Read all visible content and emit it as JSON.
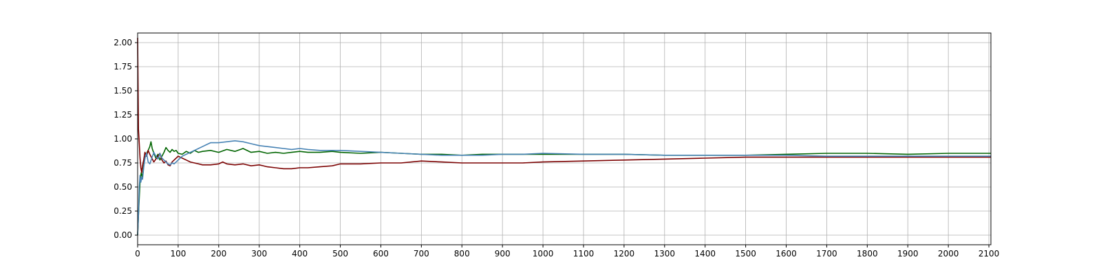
{
  "chart_data": {
    "type": "line",
    "title": "",
    "xlabel": "",
    "ylabel": "",
    "xlim": [
      0,
      2105
    ],
    "ylim": [
      -0.1,
      2.1
    ],
    "grid": true,
    "legend": "none",
    "xticks": [
      "0",
      "100",
      "200",
      "300",
      "400",
      "500",
      "600",
      "700",
      "800",
      "900",
      "1000",
      "1100",
      "1200",
      "1300",
      "1400",
      "1500",
      "1600",
      "1700",
      "1800",
      "1900",
      "2000",
      "2100"
    ],
    "yticks": [
      "0.00",
      "0.25",
      "0.50",
      "0.75",
      "1.00",
      "1.25",
      "1.50",
      "1.75",
      "2.00"
    ],
    "series": [
      {
        "color": "#006400",
        "x": [
          0,
          3,
          6,
          9,
          12,
          15,
          18,
          22,
          26,
          30,
          33,
          36,
          40,
          45,
          50,
          55,
          60,
          65,
          70,
          75,
          80,
          85,
          90,
          95,
          100,
          110,
          120,
          130,
          140,
          150,
          160,
          180,
          200,
          220,
          240,
          260,
          280,
          300,
          320,
          340,
          360,
          380,
          400,
          420,
          450,
          480,
          500,
          550,
          600,
          650,
          700,
          750,
          800,
          850,
          900,
          950,
          1000,
          1100,
          1200,
          1300,
          1400,
          1500,
          1600,
          1700,
          1800,
          1900,
          2000,
          2105
        ],
        "y": [
          0.0,
          0.3,
          0.55,
          0.65,
          0.6,
          0.72,
          0.8,
          0.85,
          0.88,
          0.92,
          0.97,
          0.9,
          0.85,
          0.8,
          0.84,
          0.78,
          0.82,
          0.86,
          0.91,
          0.88,
          0.86,
          0.89,
          0.87,
          0.88,
          0.85,
          0.84,
          0.87,
          0.85,
          0.88,
          0.86,
          0.87,
          0.88,
          0.86,
          0.89,
          0.87,
          0.9,
          0.86,
          0.87,
          0.85,
          0.86,
          0.85,
          0.86,
          0.87,
          0.86,
          0.86,
          0.87,
          0.86,
          0.85,
          0.86,
          0.85,
          0.84,
          0.84,
          0.83,
          0.84,
          0.84,
          0.84,
          0.84,
          0.84,
          0.84,
          0.83,
          0.83,
          0.83,
          0.84,
          0.85,
          0.85,
          0.84,
          0.85,
          0.85
        ]
      },
      {
        "color": "#7b0000",
        "x": [
          0,
          2,
          4,
          6,
          8,
          10,
          12,
          15,
          18,
          22,
          26,
          30,
          35,
          40,
          45,
          50,
          55,
          60,
          65,
          70,
          75,
          80,
          85,
          90,
          100,
          110,
          120,
          130,
          140,
          150,
          160,
          180,
          200,
          210,
          220,
          240,
          260,
          280,
          300,
          320,
          340,
          360,
          380,
          400,
          420,
          450,
          480,
          500,
          550,
          600,
          650,
          700,
          750,
          800,
          850,
          900,
          950,
          1000,
          1100,
          1200,
          1300,
          1400,
          1500,
          1600,
          1700,
          1800,
          1900,
          2000,
          2105
        ],
        "y": [
          2.05,
          1.1,
          0.95,
          0.8,
          0.7,
          0.65,
          0.72,
          0.78,
          0.86,
          0.82,
          0.88,
          0.84,
          0.8,
          0.76,
          0.79,
          0.82,
          0.85,
          0.78,
          0.75,
          0.77,
          0.73,
          0.72,
          0.76,
          0.78,
          0.82,
          0.8,
          0.78,
          0.76,
          0.75,
          0.74,
          0.73,
          0.73,
          0.74,
          0.76,
          0.74,
          0.73,
          0.74,
          0.72,
          0.73,
          0.71,
          0.7,
          0.69,
          0.69,
          0.7,
          0.7,
          0.71,
          0.72,
          0.74,
          0.74,
          0.75,
          0.75,
          0.77,
          0.76,
          0.75,
          0.75,
          0.75,
          0.75,
          0.76,
          0.77,
          0.78,
          0.79,
          0.8,
          0.81,
          0.81,
          0.81,
          0.81,
          0.81,
          0.81,
          0.81
        ]
      },
      {
        "color": "#4682b4",
        "x": [
          0,
          2,
          4,
          6,
          8,
          10,
          12,
          15,
          18,
          22,
          26,
          30,
          35,
          40,
          45,
          50,
          55,
          60,
          65,
          70,
          75,
          80,
          85,
          90,
          100,
          110,
          120,
          130,
          140,
          150,
          160,
          170,
          180,
          200,
          220,
          240,
          260,
          280,
          300,
          320,
          340,
          360,
          380,
          400,
          420,
          450,
          500,
          550,
          600,
          650,
          700,
          750,
          800,
          850,
          900,
          950,
          1000,
          1100,
          1200,
          1300,
          1400,
          1500,
          1600,
          1700,
          1800,
          1900,
          2000,
          2105
        ],
        "y": [
          0.0,
          0.2,
          0.5,
          0.62,
          0.55,
          0.6,
          0.58,
          0.7,
          0.8,
          0.85,
          0.76,
          0.74,
          0.8,
          0.86,
          0.82,
          0.79,
          0.85,
          0.8,
          0.78,
          0.76,
          0.74,
          0.73,
          0.75,
          0.74,
          0.78,
          0.82,
          0.84,
          0.86,
          0.88,
          0.9,
          0.92,
          0.94,
          0.96,
          0.96,
          0.97,
          0.98,
          0.97,
          0.95,
          0.93,
          0.92,
          0.91,
          0.9,
          0.89,
          0.9,
          0.89,
          0.88,
          0.88,
          0.87,
          0.86,
          0.85,
          0.84,
          0.83,
          0.83,
          0.83,
          0.84,
          0.84,
          0.85,
          0.84,
          0.84,
          0.83,
          0.83,
          0.83,
          0.83,
          0.82,
          0.82,
          0.82,
          0.82,
          0.82
        ]
      }
    ]
  }
}
